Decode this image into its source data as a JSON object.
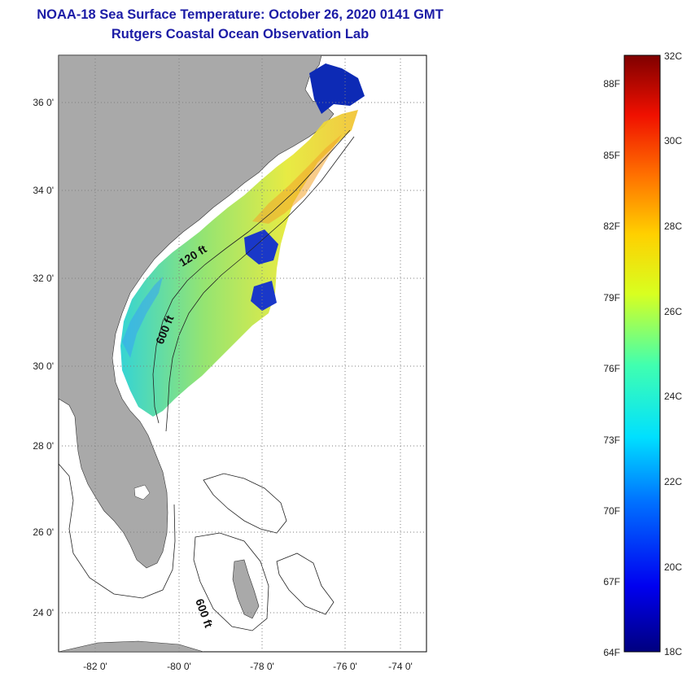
{
  "title": {
    "line1": "NOAA-18 Sea Surface Temperature:  October 26, 2020 0141 GMT",
    "line2": "Rutgers Coastal Ocean Observation Lab"
  },
  "map": {
    "lat_ticks": [
      "36 0'",
      "34 0'",
      "32 0'",
      "30 0'",
      "28 0'",
      "26 0'",
      "24 0'"
    ],
    "lon_ticks": [
      "-82 0'",
      "-80 0'",
      "-78 0'",
      "-76 0'",
      "-74 0'"
    ],
    "contours": [
      "120 ft",
      "600 ft",
      "600 ft"
    ],
    "colors": {
      "land": "#a9a9a9",
      "ocean": "#ffffff",
      "grid": "#7f7f7f"
    }
  },
  "colorbar": {
    "celsius": [
      "32C",
      "30C",
      "28C",
      "26C",
      "24C",
      "22C",
      "20C",
      "18C"
    ],
    "fahrenheit": [
      "88F",
      "85F",
      "82F",
      "79F",
      "76F",
      "73F",
      "70F",
      "67F",
      "64F"
    ],
    "range_c": [
      18,
      32
    ]
  }
}
